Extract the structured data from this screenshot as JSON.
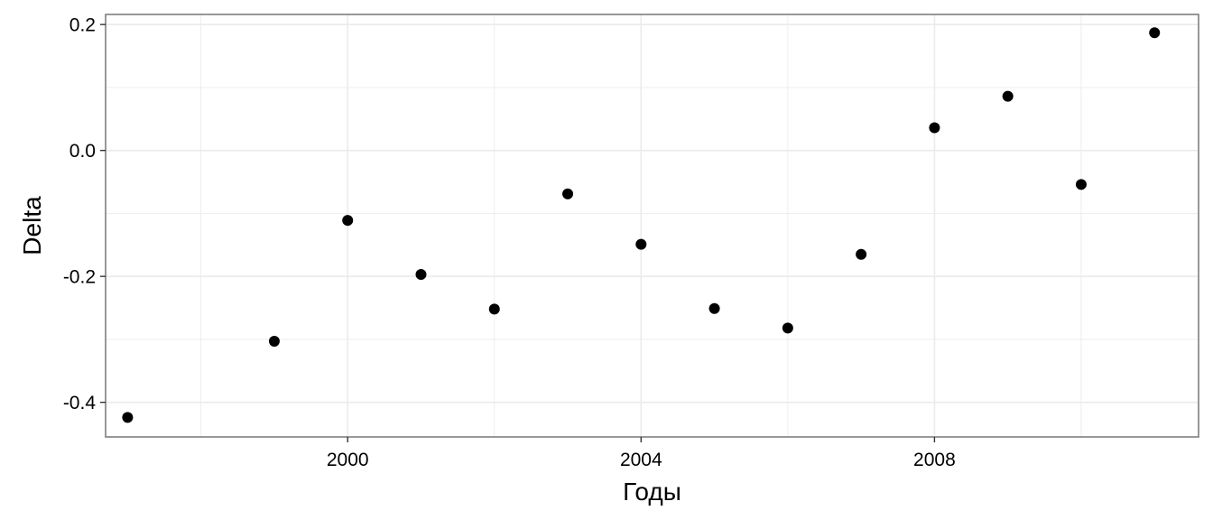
{
  "chart_data": {
    "type": "scatter",
    "xlabel": "Годы",
    "ylabel": "Delta",
    "xlim": [
      1996.7,
      2011.6
    ],
    "ylim": [
      -0.455,
      0.216
    ],
    "x_ticks": [
      2000,
      2004,
      2008
    ],
    "x_tick_labels": [
      "2000",
      "2004",
      "2008"
    ],
    "x_minor_ticks": [
      1998,
      2002,
      2006,
      2010
    ],
    "y_ticks": [
      -0.4,
      -0.2,
      0.0,
      0.2
    ],
    "y_tick_labels": [
      "-0.4",
      "-0.2",
      "0.0",
      "0.2"
    ],
    "y_minor_ticks": [
      -0.3,
      -0.1,
      0.1
    ],
    "grid": true,
    "colors": {
      "point": "#000000",
      "grid": "#ebebeb",
      "panel_border": "#7f7f7f",
      "background": "#ffffff"
    },
    "points": [
      {
        "x": 1997,
        "y": -0.424
      },
      {
        "x": 1999,
        "y": -0.303
      },
      {
        "x": 2000,
        "y": -0.111
      },
      {
        "x": 2001,
        "y": -0.197
      },
      {
        "x": 2002,
        "y": -0.252
      },
      {
        "x": 2003,
        "y": -0.069
      },
      {
        "x": 2004,
        "y": -0.149
      },
      {
        "x": 2005,
        "y": -0.251
      },
      {
        "x": 2006,
        "y": -0.282
      },
      {
        "x": 2007,
        "y": -0.165
      },
      {
        "x": 2008,
        "y": 0.036
      },
      {
        "x": 2009,
        "y": 0.086
      },
      {
        "x": 2010,
        "y": -0.054
      },
      {
        "x": 2011,
        "y": 0.187
      }
    ]
  }
}
